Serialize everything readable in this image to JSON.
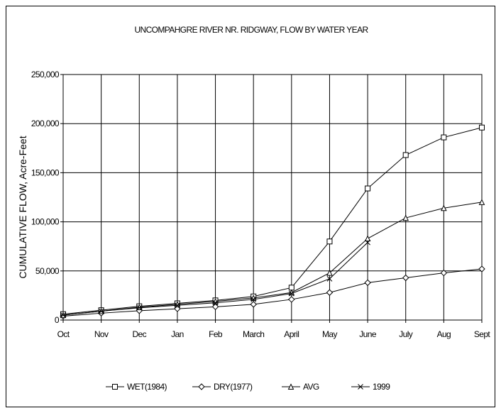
{
  "chart_data": {
    "type": "line",
    "title": "UNCOMPAHGRE RIVER NR. RIDGWAY, FLOW BY WATER YEAR",
    "xlabel": "",
    "ylabel": "CUMULATIVE FLOW, Acre-Feet",
    "categories": [
      "Oct",
      "Nov",
      "Dec",
      "Jan",
      "Feb",
      "March",
      "April",
      "May",
      "June",
      "July",
      "Aug",
      "Sept"
    ],
    "ylim": [
      0,
      250000
    ],
    "yticks": [
      0,
      50000,
      100000,
      150000,
      200000,
      250000
    ],
    "ytick_labels": [
      "0",
      "50,000",
      "100,000",
      "150,000",
      "200,000",
      "250,000"
    ],
    "grid": true,
    "legend_position": "bottom",
    "series": [
      {
        "name": "WET(1984)",
        "marker": "square",
        "values": [
          6000,
          10000,
          14000,
          17000,
          20000,
          24000,
          33000,
          80000,
          134000,
          168000,
          186000,
          196000
        ]
      },
      {
        "name": "DRY(1977)",
        "marker": "diamond",
        "values": [
          4000,
          7000,
          9500,
          11500,
          13500,
          16000,
          21000,
          28000,
          38000,
          43000,
          48000,
          52000
        ]
      },
      {
        "name": "AVG",
        "marker": "triangle",
        "values": [
          5000,
          9000,
          13000,
          16000,
          19000,
          22500,
          28000,
          48000,
          83000,
          104000,
          114000,
          120000
        ]
      },
      {
        "name": "1999",
        "marker": "x",
        "values": [
          5000,
          9000,
          12500,
          15000,
          17500,
          21000,
          27000,
          42000,
          79000,
          null,
          null,
          null
        ]
      }
    ],
    "colors": {
      "line": "#000000",
      "grid": "#000000",
      "background": "#ffffff"
    }
  }
}
